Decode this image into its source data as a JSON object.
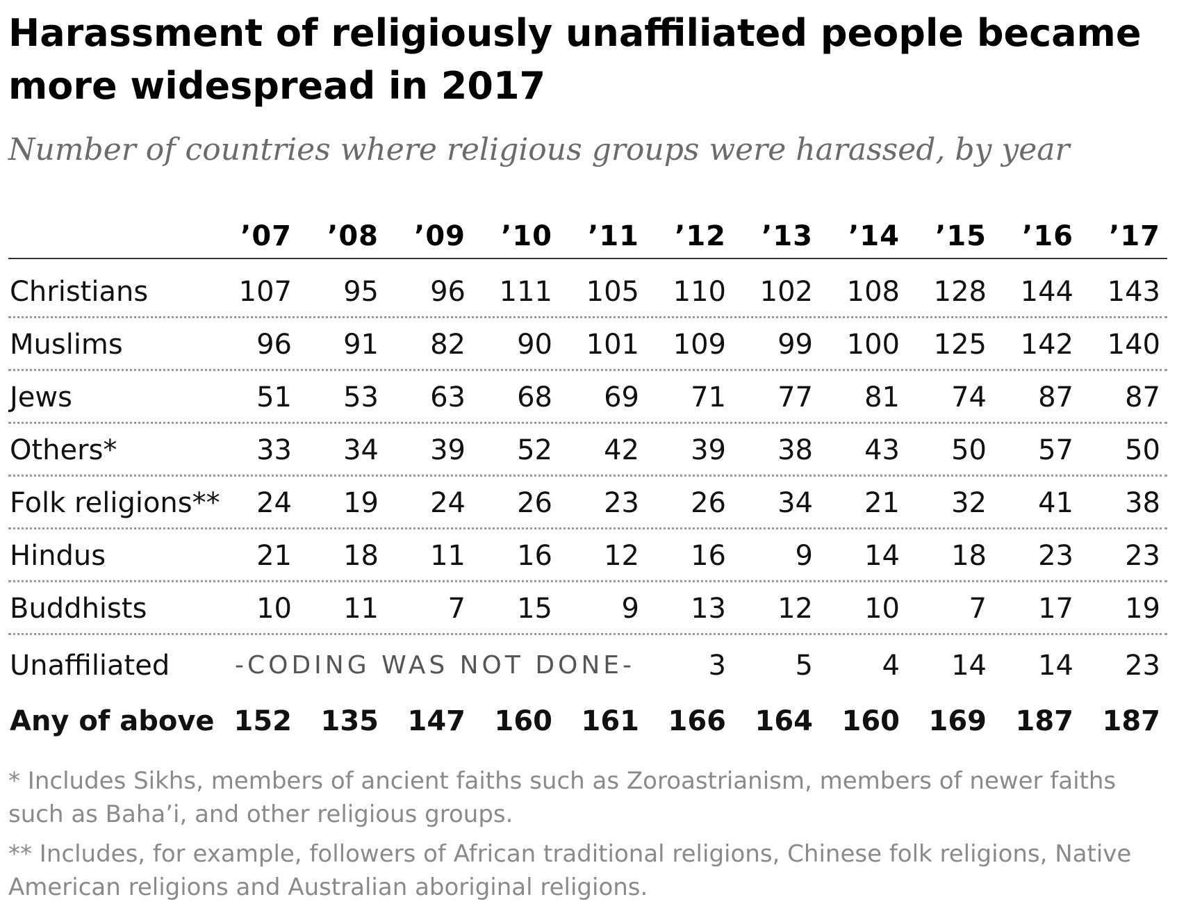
{
  "title": "Harassment of religiously unaffiliated people became more widespread in 2017",
  "subtitle": "Number of countries where religious groups were harassed, by year",
  "chart_data": {
    "type": "table",
    "columns": [
      "’07",
      "’08",
      "’09",
      "’10",
      "’11",
      "’12",
      "’13",
      "’14",
      "’15",
      "’16",
      "’17"
    ],
    "rows": [
      {
        "label": "Christians",
        "values": [
          "107",
          "95",
          "96",
          "111",
          "105",
          "110",
          "102",
          "108",
          "128",
          "144",
          "143"
        ]
      },
      {
        "label": "Muslims",
        "values": [
          "96",
          "91",
          "82",
          "90",
          "101",
          "109",
          "99",
          "100",
          "125",
          "142",
          "140"
        ]
      },
      {
        "label": "Jews",
        "values": [
          "51",
          "53",
          "63",
          "68",
          "69",
          "71",
          "77",
          "81",
          "74",
          "87",
          "87"
        ]
      },
      {
        "label": "Others*",
        "values": [
          "33",
          "34",
          "39",
          "52",
          "42",
          "39",
          "38",
          "43",
          "50",
          "57",
          "50"
        ]
      },
      {
        "label": "Folk religions**",
        "values": [
          "24",
          "19",
          "24",
          "26",
          "23",
          "26",
          "34",
          "21",
          "32",
          "41",
          "38"
        ]
      },
      {
        "label": "Hindus",
        "values": [
          "21",
          "18",
          "11",
          "16",
          "12",
          "16",
          "9",
          "14",
          "18",
          "23",
          "23"
        ]
      },
      {
        "label": "Buddhists",
        "values": [
          "10",
          "11",
          "7",
          "15",
          "9",
          "13",
          "12",
          "10",
          "7",
          "17",
          "19"
        ]
      },
      {
        "label": "Unaffiliated",
        "values": [
          "",
          "",
          "",
          "",
          "",
          "3",
          "5",
          "4",
          "14",
          "14",
          "23"
        ],
        "note": "-CODING WAS NOT DONE-"
      },
      {
        "label": "Any of above",
        "values": [
          "152",
          "135",
          "147",
          "160",
          "161",
          "166",
          "164",
          "160",
          "169",
          "187",
          "187"
        ],
        "bold": true
      }
    ]
  },
  "footnotes": [
    "* Includes Sikhs, members of ancient faiths such as Zoroastrianism, members of newer faiths such as Baha’i, and other religious groups.",
    "** Includes, for example, followers of African traditional religions, Chinese folk religions, Native American religions and Australian aboriginal religions."
  ]
}
